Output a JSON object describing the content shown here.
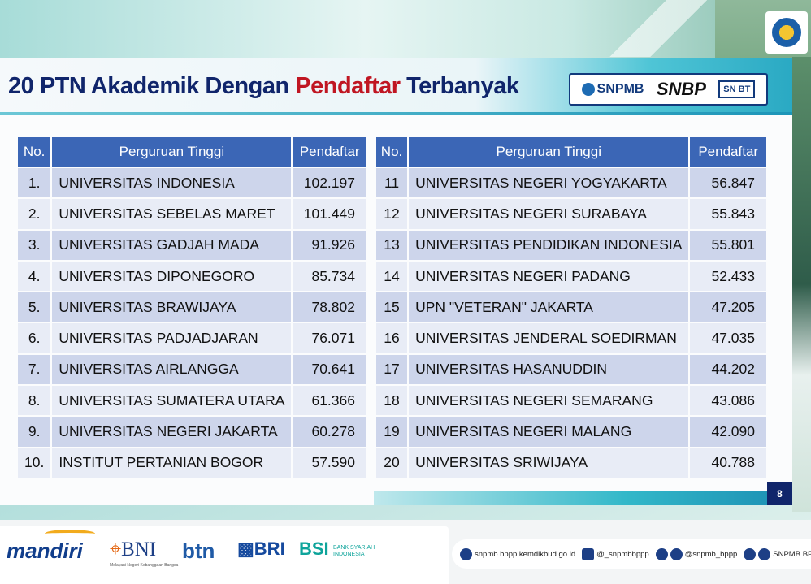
{
  "header": {
    "title_part1": "20 PTN Akademik Dengan ",
    "title_highlight": "Pendaftar",
    "title_part2": " Terbanyak",
    "logos": {
      "snpmb": "SNPMB",
      "snbp": "SNBP",
      "snbt": "SN BT"
    }
  },
  "table_left": {
    "headers": [
      "No.",
      "Perguruan Tinggi",
      "Pendaftar"
    ],
    "rows": [
      {
        "no": "1.",
        "name": "UNIVERSITAS INDONESIA",
        "count": "102.197"
      },
      {
        "no": "2.",
        "name": "UNIVERSITAS SEBELAS MARET",
        "count": "101.449"
      },
      {
        "no": "3.",
        "name": "UNIVERSITAS GADJAH MADA",
        "count": "91.926"
      },
      {
        "no": "4.",
        "name": "UNIVERSITAS DIPONEGORO",
        "count": "85.734"
      },
      {
        "no": "5.",
        "name": "UNIVERSITAS BRAWIJAYA",
        "count": "78.802"
      },
      {
        "no": "6.",
        "name": "UNIVERSITAS PADJADJARAN",
        "count": "76.071"
      },
      {
        "no": "7.",
        "name": "UNIVERSITAS AIRLANGGA",
        "count": "70.641"
      },
      {
        "no": "8.",
        "name": "UNIVERSITAS SUMATERA UTARA",
        "count": "61.366"
      },
      {
        "no": "9.",
        "name": "UNIVERSITAS NEGERI JAKARTA",
        "count": "60.278"
      },
      {
        "no": "10.",
        "name": "INSTITUT PERTANIAN BOGOR",
        "count": "57.590"
      }
    ]
  },
  "table_right": {
    "headers": [
      "No.",
      "Perguruan Tinggi",
      "Pendaftar"
    ],
    "rows": [
      {
        "no": "11",
        "name": "UNIVERSITAS NEGERI YOGYAKARTA",
        "count": "56.847"
      },
      {
        "no": "12",
        "name": "UNIVERSITAS NEGERI SURABAYA",
        "count": "55.843"
      },
      {
        "no": "13",
        "name": "UNIVERSITAS PENDIDIKAN INDONESIA",
        "count": "55.801"
      },
      {
        "no": "14",
        "name": "UNIVERSITAS NEGERI PADANG",
        "count": "52.433"
      },
      {
        "no": "15",
        "name": "UPN \"VETERAN\" JAKARTA",
        "count": "47.205"
      },
      {
        "no": "16",
        "name": "UNIVERSITAS JENDERAL SOEDIRMAN",
        "count": "47.035"
      },
      {
        "no": "17",
        "name": "UNIVERSITAS HASANUDDIN",
        "count": "44.202"
      },
      {
        "no": "18",
        "name": "UNIVERSITAS NEGERI SEMARANG",
        "count": "43.086"
      },
      {
        "no": "19",
        "name": "UNIVERSITAS NEGERI MALANG",
        "count": "42.090"
      },
      {
        "no": "20",
        "name": "UNIVERSITAS SRIWIJAYA",
        "count": "40.788"
      }
    ]
  },
  "page_number": "8",
  "footer": {
    "banks": {
      "mandiri": "mandiri",
      "bni": "BNI",
      "bni_sub": "Melayani Negeri Kebanggaan Bangsa",
      "btn": "btn",
      "bri": "BRI",
      "bsi": "BSI",
      "bsi_sub": "BANK SYARIAH INDONESIA"
    },
    "social": {
      "website": "snpmb.bppp.kemdikbud.go.id",
      "instagram": "@_snpmbbppp",
      "x_tiktok": "@snpmb_bppp",
      "facebook_youtube": "SNPMB BPPP"
    }
  },
  "colors": {
    "header_blue": "#3b66b6",
    "title_navy": "#10256b",
    "title_red": "#c01622",
    "row_dark": "#cdd5eb",
    "row_light": "#e8ecf6"
  }
}
